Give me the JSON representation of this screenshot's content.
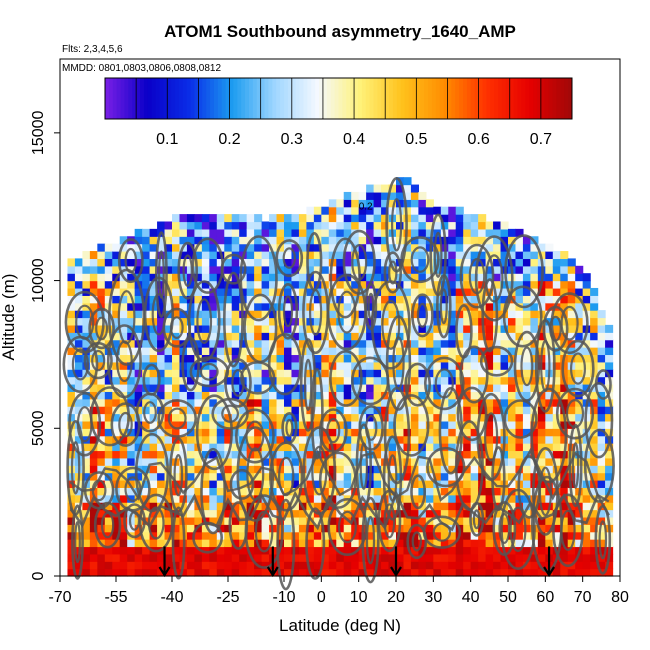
{
  "chart_data": {
    "type": "heatmap",
    "title": "ATOM1 Southbound asymmetry_1640_AMP",
    "flights_note": "Flts: 2,3,4,5,6",
    "dates_note": "MMDD: 0801,0803,0806,0808,0812",
    "xlabel": "Latitude (deg N)",
    "ylabel": "Altitude (m)",
    "xlim": [
      -70,
      80
    ],
    "ylim": [
      0,
      17500
    ],
    "x_ticks": [
      -70,
      -55,
      -40,
      -25,
      -10,
      0,
      10,
      20,
      30,
      40,
      50,
      60,
      70,
      80
    ],
    "y_ticks": [
      0,
      5000,
      10000,
      15000
    ],
    "colorbar": {
      "range": [
        0.0,
        0.75
      ],
      "ticks": [
        0.1,
        0.2,
        0.3,
        0.4,
        0.5,
        0.6,
        0.7
      ],
      "colors": [
        "#7a1fe6",
        "#0a00c8",
        "#0a2ee8",
        "#1c9cf0",
        "#9fd6ff",
        "#f4f8ff",
        "#fff27a",
        "#ffc21c",
        "#ff8c00",
        "#ff3000",
        "#e60000",
        "#a00808"
      ]
    },
    "contour_label": "0.2",
    "data_extent": {
      "lat_min": -68,
      "lat_max": 78,
      "top_altitude": [
        {
          "lat": -68,
          "alt": 10500
        },
        {
          "lat": -60,
          "alt": 11000
        },
        {
          "lat": -50,
          "alt": 11500
        },
        {
          "lat": -40,
          "alt": 12000
        },
        {
          "lat": -25,
          "alt": 12200
        },
        {
          "lat": -15,
          "alt": 12000
        },
        {
          "lat": -5,
          "alt": 12200
        },
        {
          "lat": 10,
          "alt": 12900
        },
        {
          "lat": 23,
          "alt": 13400
        },
        {
          "lat": 30,
          "alt": 12500
        },
        {
          "lat": 45,
          "alt": 12000
        },
        {
          "lat": 55,
          "alt": 11500
        },
        {
          "lat": 63,
          "alt": 11000
        },
        {
          "lat": 72,
          "alt": 10000
        },
        {
          "lat": 78,
          "alt": 8000
        }
      ]
    },
    "profile_bands": [
      {
        "alt_min": 0,
        "alt_max": 1000,
        "mean": 0.68
      },
      {
        "alt_min": 1000,
        "alt_max": 2500,
        "mean": 0.55
      },
      {
        "alt_min": 2500,
        "alt_max": 6000,
        "mean": 0.4
      },
      {
        "alt_min": 6000,
        "alt_max": 10000,
        "mean": 0.32
      },
      {
        "alt_min": 10000,
        "alt_max": 13500,
        "mean": 0.25
      }
    ],
    "arrow_latitudes": [
      -42,
      -13,
      20,
      61
    ]
  }
}
